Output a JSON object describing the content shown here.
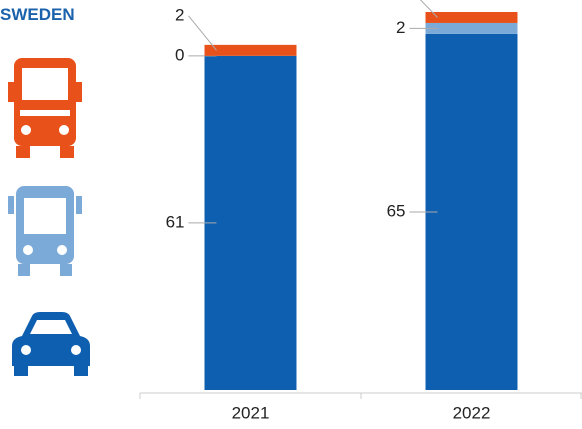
{
  "chart_data": {
    "type": "stacked-bar",
    "title": "SWEDEN",
    "categories": [
      "2021",
      "2022"
    ],
    "series": [
      {
        "color": "#0f5fb1",
        "values": [
          61,
          65
        ]
      },
      {
        "color": "#7ba9d8",
        "values": [
          0,
          2
        ]
      },
      {
        "color": "#e8511a",
        "values": [
          2,
          2
        ]
      }
    ]
  }
}
